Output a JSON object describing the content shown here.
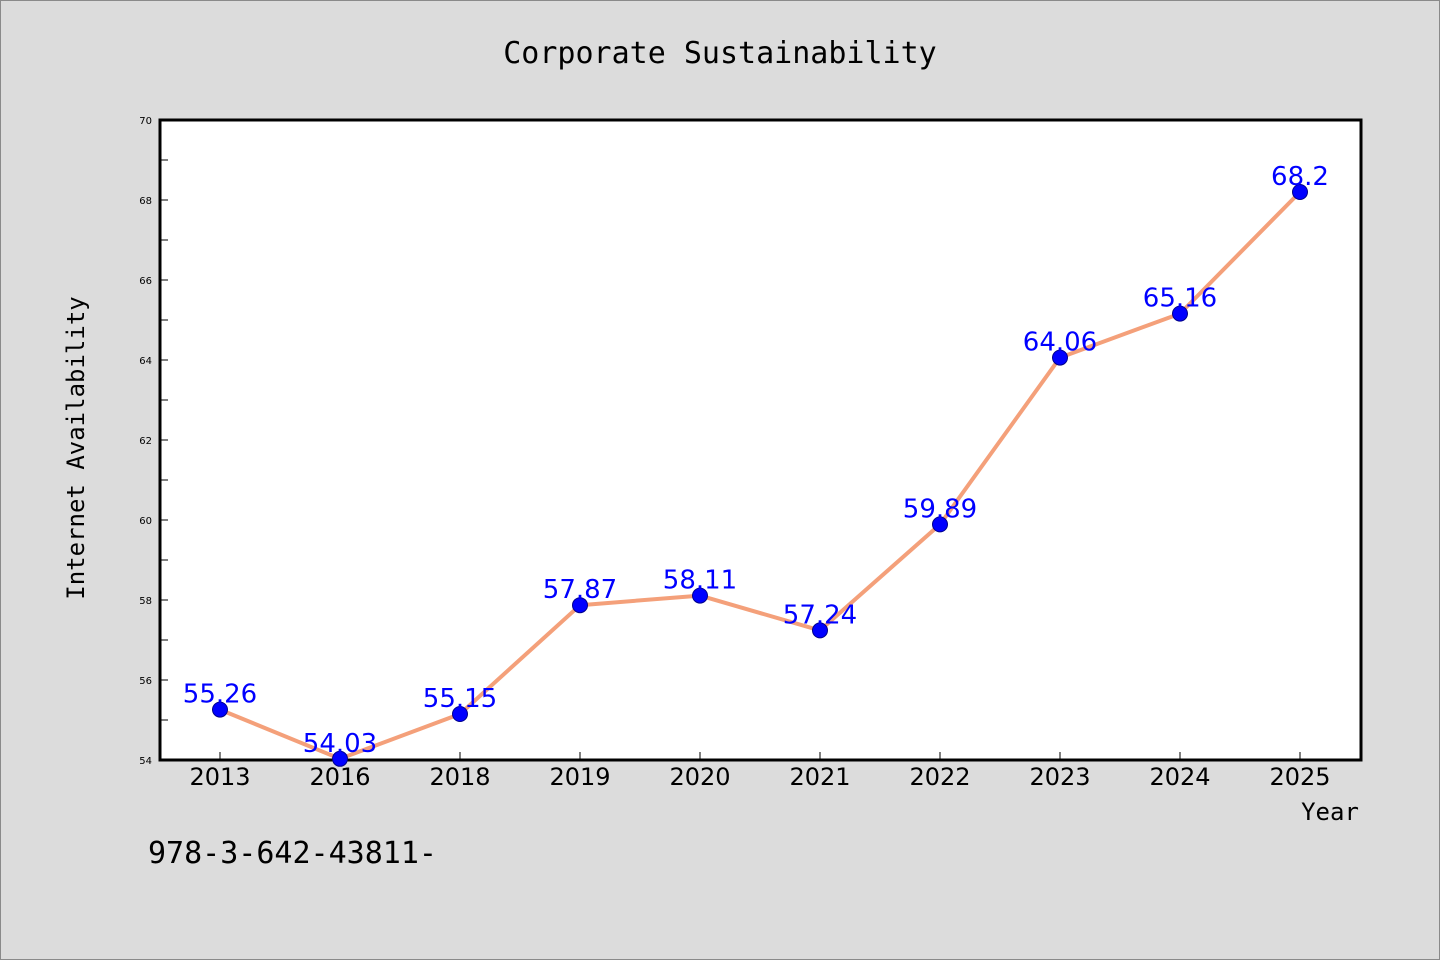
{
  "chart_data": {
    "type": "line",
    "title": "Corporate Sustainability",
    "xlabel": "Year",
    "ylabel": "Internet Availability",
    "categories": [
      "2013",
      "2016",
      "2018",
      "2019",
      "2020",
      "2021",
      "2022",
      "2023",
      "2024",
      "2025"
    ],
    "series": [
      {
        "values": [
          55.26,
          54.03,
          55.15,
          57.87,
          58.11,
          57.24,
          59.89,
          64.06,
          65.16,
          68.2
        ]
      }
    ],
    "data_labels": [
      "55.26",
      "54.03",
      "55.15",
      "57.87",
      "58.11",
      "57.24",
      "59.89",
      "64.06",
      "65.16",
      "68.2"
    ],
    "ylim": [
      54,
      70
    ],
    "yticks": [
      "54",
      "56",
      "58",
      "60",
      "62",
      "64",
      "66",
      "68",
      "70"
    ],
    "grid": false,
    "line_color": "#f4a07a",
    "marker_color": "#0000ff",
    "label_color": "#0000ff",
    "background_color": "#dcdcdc",
    "plot_background_color": "#ffffff"
  },
  "footer": {
    "text": "978-3-642-43811-"
  }
}
